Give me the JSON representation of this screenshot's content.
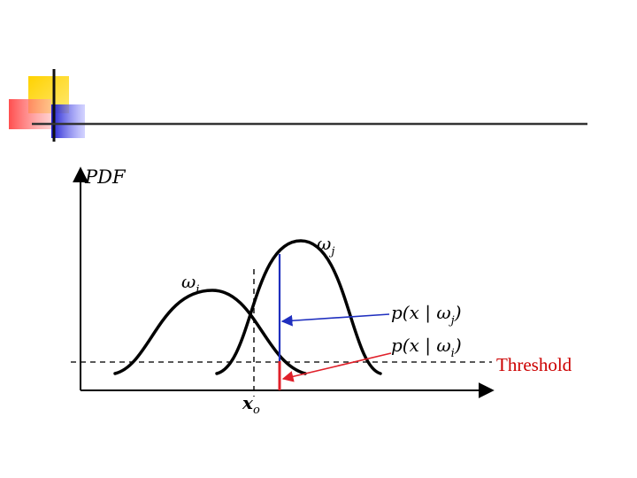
{
  "diagram": {
    "y_axis_label": "PDF",
    "x_marker_label": "x",
    "x_marker_sub": "o",
    "curve_j_label": "ω",
    "curve_j_sub": "j",
    "curve_i_label": "ω",
    "curve_i_sub": "i",
    "pj_text_pre": "p(x | ω",
    "pj_sub": "j",
    "pj_text_post": ")",
    "pi_text_pre": "p(x | ω",
    "pi_sub": "i",
    "pi_text_post": ")",
    "threshold_label": "Threshold"
  },
  "colors": {
    "axis": "#000000",
    "curve": "#000000",
    "blue_marker": "#1f2fbf",
    "red_marker": "#e0202a",
    "threshold_text": "#cc0000",
    "deco_yellow": "#ffd200",
    "deco_red": "#ff4a4a",
    "deco_blue": "#2a2ad6"
  }
}
